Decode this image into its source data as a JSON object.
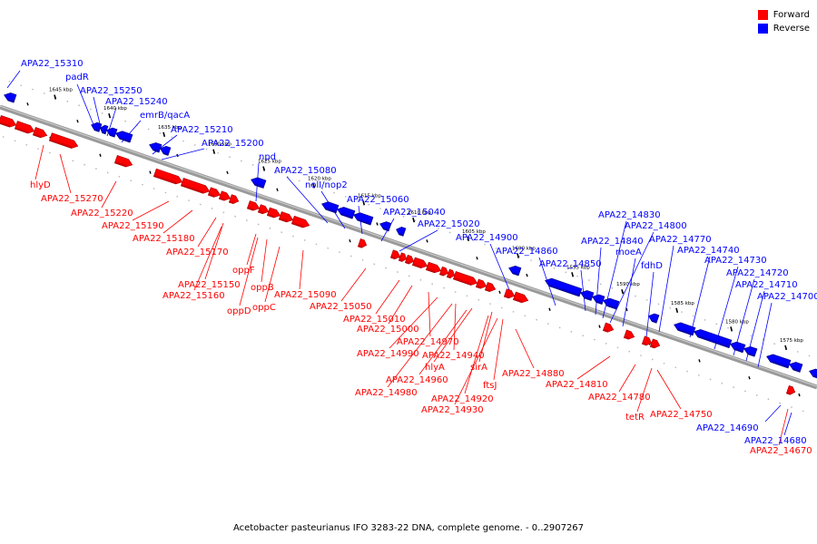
{
  "caption": "Acetobacter pasteurianus IFO 3283-22 DNA, complete genome. - 0..2907267",
  "legend": [
    {
      "label": "Forward",
      "color": "#ff0000"
    },
    {
      "label": "Reverse",
      "color": "#0000ff"
    }
  ],
  "colors": {
    "forward": "#ff0000",
    "reverse": "#0000ff",
    "backbone": "#808080"
  },
  "ticks": [
    "1645 kbp",
    "1640 kbp",
    "1635 kbp",
    "1630 kbp",
    "1625 kbp",
    "1620 kbp",
    "1615 kbp",
    "1610 kbp",
    "1605 kbp",
    "1600 kbp",
    "1595 kbp",
    "1590 kbp",
    "1585 kbp",
    "1580 kbp",
    "1575 kbp"
  ],
  "reverse_labels": [
    "APA22_15310",
    "padR",
    "APA22_15250",
    "APA22_15240",
    "emrB/qacA",
    "APA22_15210",
    "APA22_15200",
    "npd",
    "APA22_15080",
    "nolI/nop2",
    "APA22_15060",
    "APA22_15040",
    "APA22_15020",
    "APA22_14900",
    "APA22_14860",
    "APA22_14850",
    "APA22_14840",
    "APA22_14830",
    "APA22_14800",
    "moeA",
    "fdhD",
    "APA22_14770",
    "APA22_14740",
    "APA22_14730",
    "APA22_14720",
    "APA22_14710",
    "APA22_14700",
    "APA22_14690",
    "APA22_14680"
  ],
  "forward_labels": [
    "hlyD",
    "APA22_15270",
    "APA22_15220",
    "APA22_15190",
    "APA22_15180",
    "APA22_15170",
    "APA22_15150",
    "APA22_15160",
    "oppF",
    "oppB",
    "oppD",
    "oppC",
    "APA22_15090",
    "APA22_15050",
    "APA22_15010",
    "APA22_15000",
    "APA22_14970",
    "APA22_14990",
    "APA22_14940",
    "hlyA",
    "APA22_14960",
    "APA22_14980",
    "sirA",
    "ftsJ",
    "APA22_14920",
    "APA22_14930",
    "APA22_14880",
    "APA22_14810",
    "APA22_14780",
    "tetR",
    "APA22_14750",
    "APA22_14670"
  ]
}
